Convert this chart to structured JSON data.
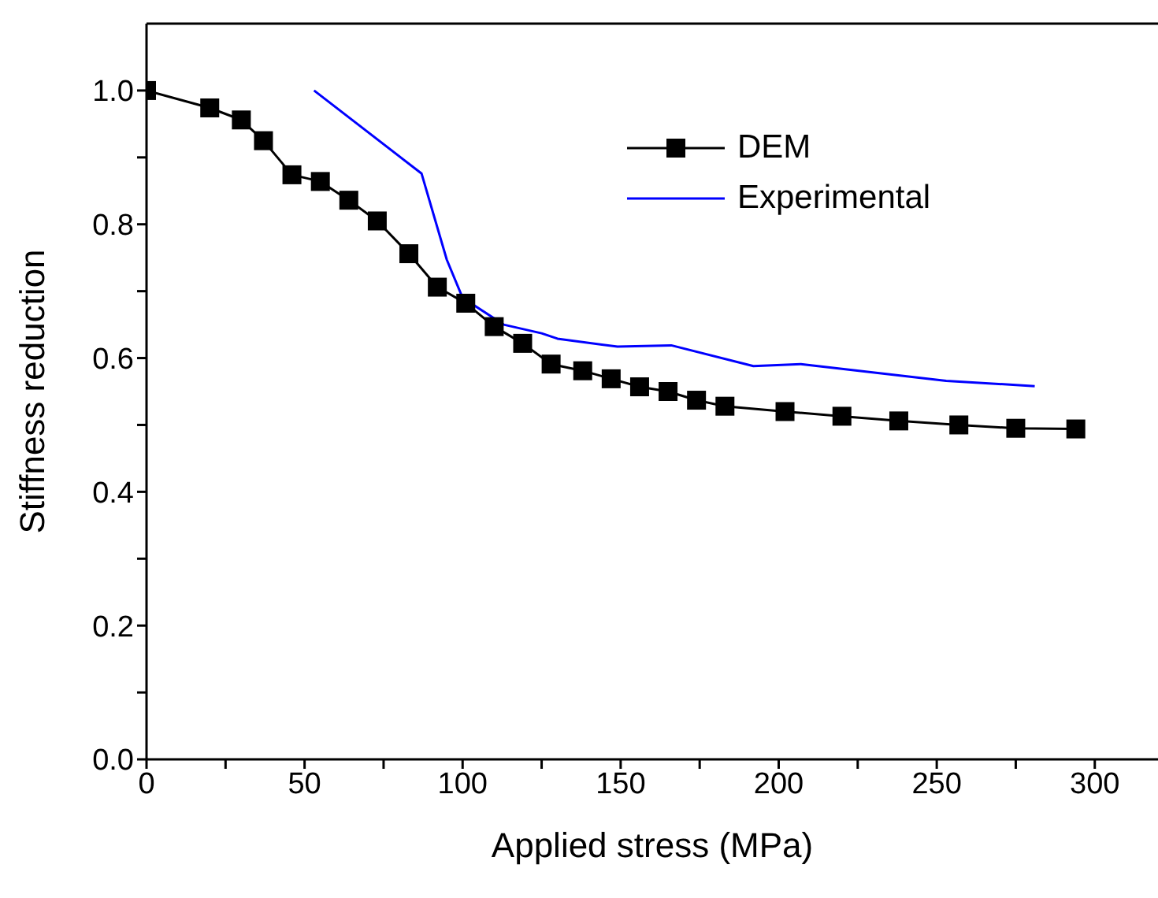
{
  "chart_data": {
    "type": "line",
    "xlabel": "Applied stress (MPa)",
    "ylabel": "Stiffness reduction",
    "xlim": [
      0,
      320
    ],
    "ylim": [
      0,
      1.1
    ],
    "xticks": [
      0,
      {
        "value": 25,
        "label": null
      },
      50,
      {
        "value": 75,
        "label": null
      },
      100,
      {
        "value": 125,
        "label": null
      },
      150,
      {
        "value": 175,
        "label": null
      },
      200,
      {
        "value": 225,
        "label": null
      },
      250,
      {
        "value": 275,
        "label": null
      },
      300
    ],
    "yticks": [
      {
        "value": 0,
        "label": "0.0"
      },
      {
        "value": 0.1,
        "label": null
      },
      0.2,
      {
        "value": 0.3,
        "label": null
      },
      0.4,
      {
        "value": 0.5,
        "label": null
      },
      0.6,
      {
        "value": 0.7,
        "label": null
      },
      0.8,
      {
        "value": 0.9,
        "label": null
      },
      {
        "value": 1,
        "label": "1.0"
      }
    ],
    "legend": "top right",
    "series": [
      {
        "name": "DEM",
        "color": "#000000",
        "marker": "square",
        "x": [
          0,
          20,
          30,
          37,
          46,
          55,
          64,
          73,
          83,
          92,
          101,
          110,
          119,
          128,
          138,
          147,
          156,
          165,
          174,
          183,
          202,
          220,
          238,
          257,
          275,
          294
        ],
        "values": [
          1.0,
          0.974,
          0.956,
          0.925,
          0.874,
          0.864,
          0.836,
          0.805,
          0.756,
          0.706,
          0.682,
          0.647,
          0.622,
          0.591,
          0.581,
          0.569,
          0.557,
          0.55,
          0.537,
          0.528,
          0.52,
          0.513,
          0.506,
          0.5,
          0.495,
          0.494
        ]
      },
      {
        "name": "Experimental",
        "color": "#0000ff",
        "marker": "none",
        "x": [
          53,
          87,
          95,
          100,
          113,
          125,
          130,
          149,
          166,
          192,
          207,
          253,
          281
        ],
        "values": [
          1.0,
          0.876,
          0.747,
          0.69,
          0.65,
          0.637,
          0.629,
          0.617,
          0.619,
          0.588,
          0.591,
          0.566,
          0.558
        ]
      }
    ]
  }
}
